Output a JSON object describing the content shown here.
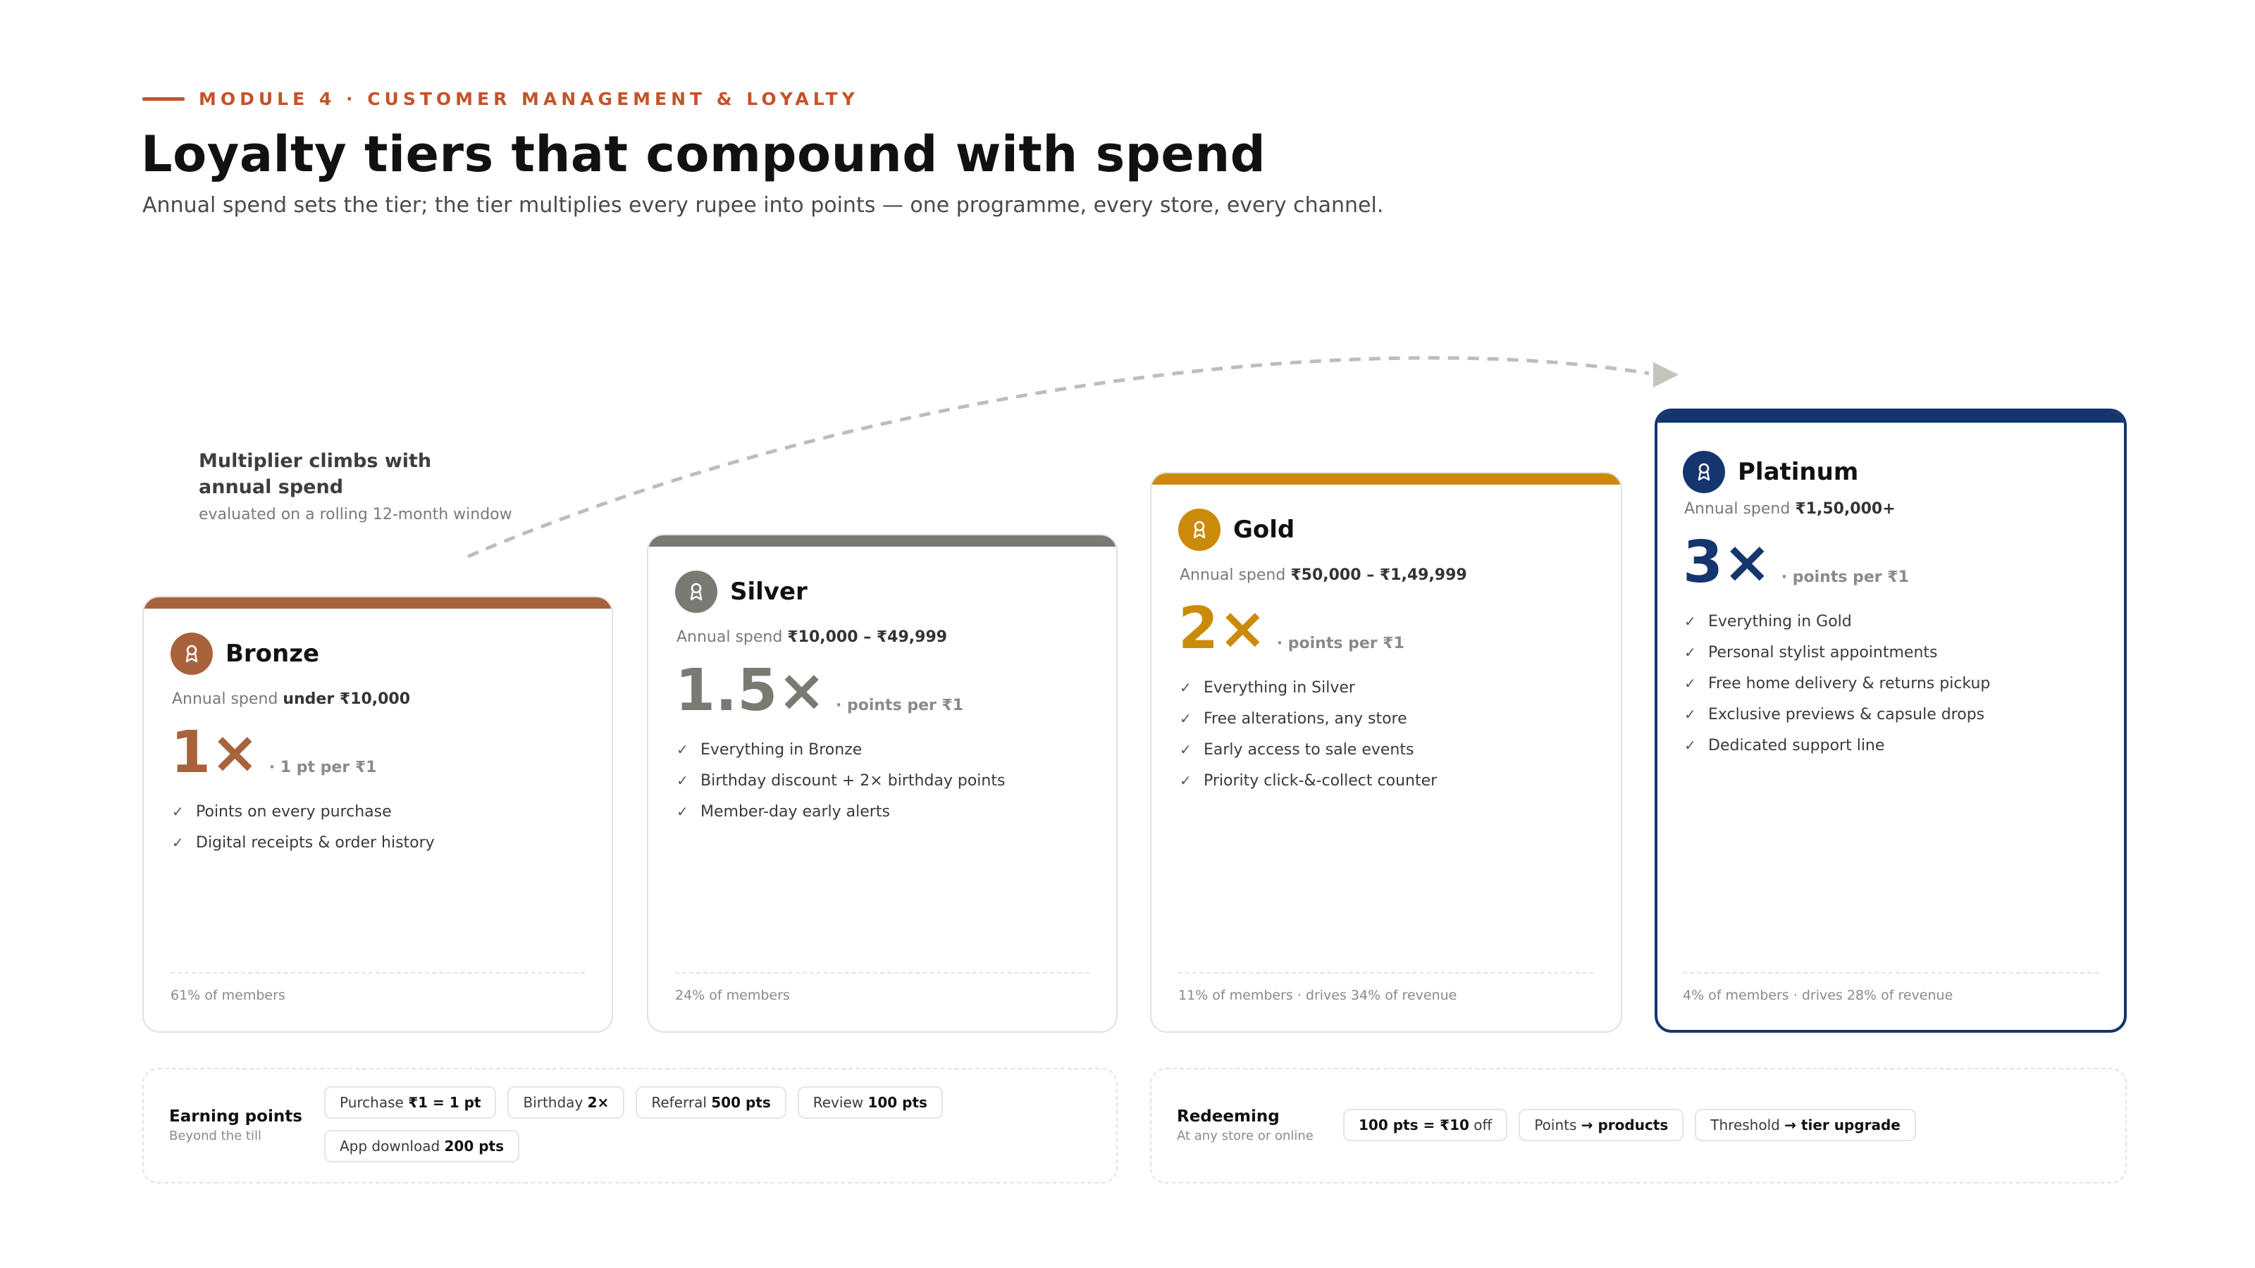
{
  "header": {
    "eyebrow": "MODULE 4 · CUSTOMER MANAGEMENT & LOYALTY",
    "title": "Loyalty tiers that compound with spend",
    "subtitle": "Annual spend sets the tier; the tier multiplies every rupee into points — one programme, every store, every channel."
  },
  "annotation": {
    "title": "Multiplier climbs with annual spend",
    "subtitle": "evaluated on a rolling 12-month window"
  },
  "tiers": [
    {
      "name": "Bronze",
      "spend_label": "Annual spend",
      "spend_value": "under ₹10,000",
      "multiplier": "1×",
      "multiplier_unit": "· 1 pt per ₹1",
      "perks": [
        "Points on every purchase",
        "Digital receipts & order history"
      ],
      "footer": "61% of members",
      "color": "#a8623c"
    },
    {
      "name": "Silver",
      "spend_label": "Annual spend",
      "spend_value": "₹10,000 – ₹49,999",
      "multiplier": "1.5×",
      "multiplier_unit": "· points per ₹1",
      "perks": [
        "Everything in Bronze",
        "Birthday discount + 2× birthday points",
        "Member-day early alerts"
      ],
      "footer": "24% of members",
      "color": "#7a7a72"
    },
    {
      "name": "Gold",
      "spend_label": "Annual spend",
      "spend_value": "₹50,000 – ₹1,49,999",
      "multiplier": "2×",
      "multiplier_unit": "· points per ₹1",
      "perks": [
        "Everything in Silver",
        "Free alterations, any store",
        "Early access to sale events",
        "Priority click-&-collect counter"
      ],
      "footer": "11% of members · drives 34% of revenue",
      "color": "#cc8a0a"
    },
    {
      "name": "Platinum",
      "spend_label": "Annual spend",
      "spend_value": "₹1,50,000+",
      "multiplier": "3×",
      "multiplier_unit": "· points per ₹1",
      "perks": [
        "Everything in Gold",
        "Personal stylist appointments",
        "Free home delivery & returns pickup",
        "Exclusive previews & capsule drops",
        "Dedicated support line"
      ],
      "footer": "4% of members · drives 28% of revenue",
      "color": "#14356e"
    }
  ],
  "check_glyph": "✓",
  "earning": {
    "title": "Earning points",
    "subtitle": "Beyond the till",
    "chips": [
      {
        "label": "Purchase",
        "value": "₹1 = 1 pt"
      },
      {
        "label": "Birthday",
        "value": "2×"
      },
      {
        "label": "Referral",
        "value": "500 pts"
      },
      {
        "label": "Review",
        "value": "100 pts"
      },
      {
        "label": "App download",
        "value": "200 pts"
      }
    ]
  },
  "redeeming": {
    "title": "Redeeming",
    "subtitle": "At any store or online",
    "chips": [
      {
        "value": "100 pts = ₹10",
        "suffix": "off"
      },
      {
        "label": "Points",
        "value": "→ products"
      },
      {
        "label": "Threshold",
        "value": "→ tier upgrade"
      }
    ]
  },
  "icons": {
    "tier_badge": "award-ribbon-icon",
    "arrow": "dashed-arrow-icon"
  }
}
